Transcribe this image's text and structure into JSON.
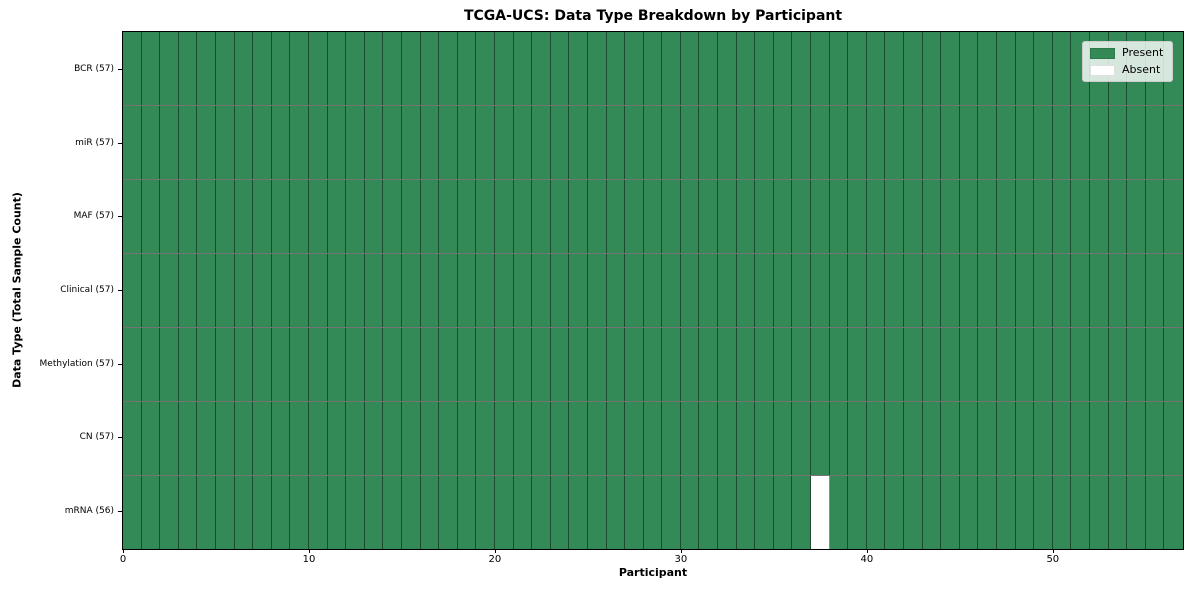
{
  "chart_data": {
    "type": "heatmap",
    "title": "TCGA-UCS: Data Type Breakdown by Participant",
    "xlabel": "Participant",
    "ylabel": "Data Type (Total Sample Count)",
    "n_participants": 57,
    "x_ticks": [
      0,
      10,
      20,
      30,
      40,
      50
    ],
    "grid": "cell-edges-on",
    "rows": [
      {
        "data_type": "BCR",
        "count": 57,
        "label": "BCR (57)",
        "absent_participants": []
      },
      {
        "data_type": "miR",
        "count": 57,
        "label": "miR (57)",
        "absent_participants": []
      },
      {
        "data_type": "MAF",
        "count": 57,
        "label": "MAF (57)",
        "absent_participants": []
      },
      {
        "data_type": "Clinical",
        "count": 57,
        "label": "Clinical (57)",
        "absent_participants": []
      },
      {
        "data_type": "Methylation",
        "count": 57,
        "label": "Methylation (57)",
        "absent_participants": []
      },
      {
        "data_type": "CN",
        "count": 57,
        "label": "CN (57)",
        "absent_participants": []
      },
      {
        "data_type": "mRNA",
        "count": 56,
        "label": "mRNA (56)",
        "absent_participants": [
          37
        ]
      }
    ],
    "legend": {
      "position": "upper-right",
      "entries": [
        {
          "label": "Present",
          "color": "#348a57"
        },
        {
          "label": "Absent",
          "color": "#ffffff"
        }
      ]
    },
    "colors": {
      "present": "#348a57",
      "absent": "#ffffff",
      "cell_edge": "rgba(0,0,0,0.45)",
      "spine": "#000000"
    }
  }
}
